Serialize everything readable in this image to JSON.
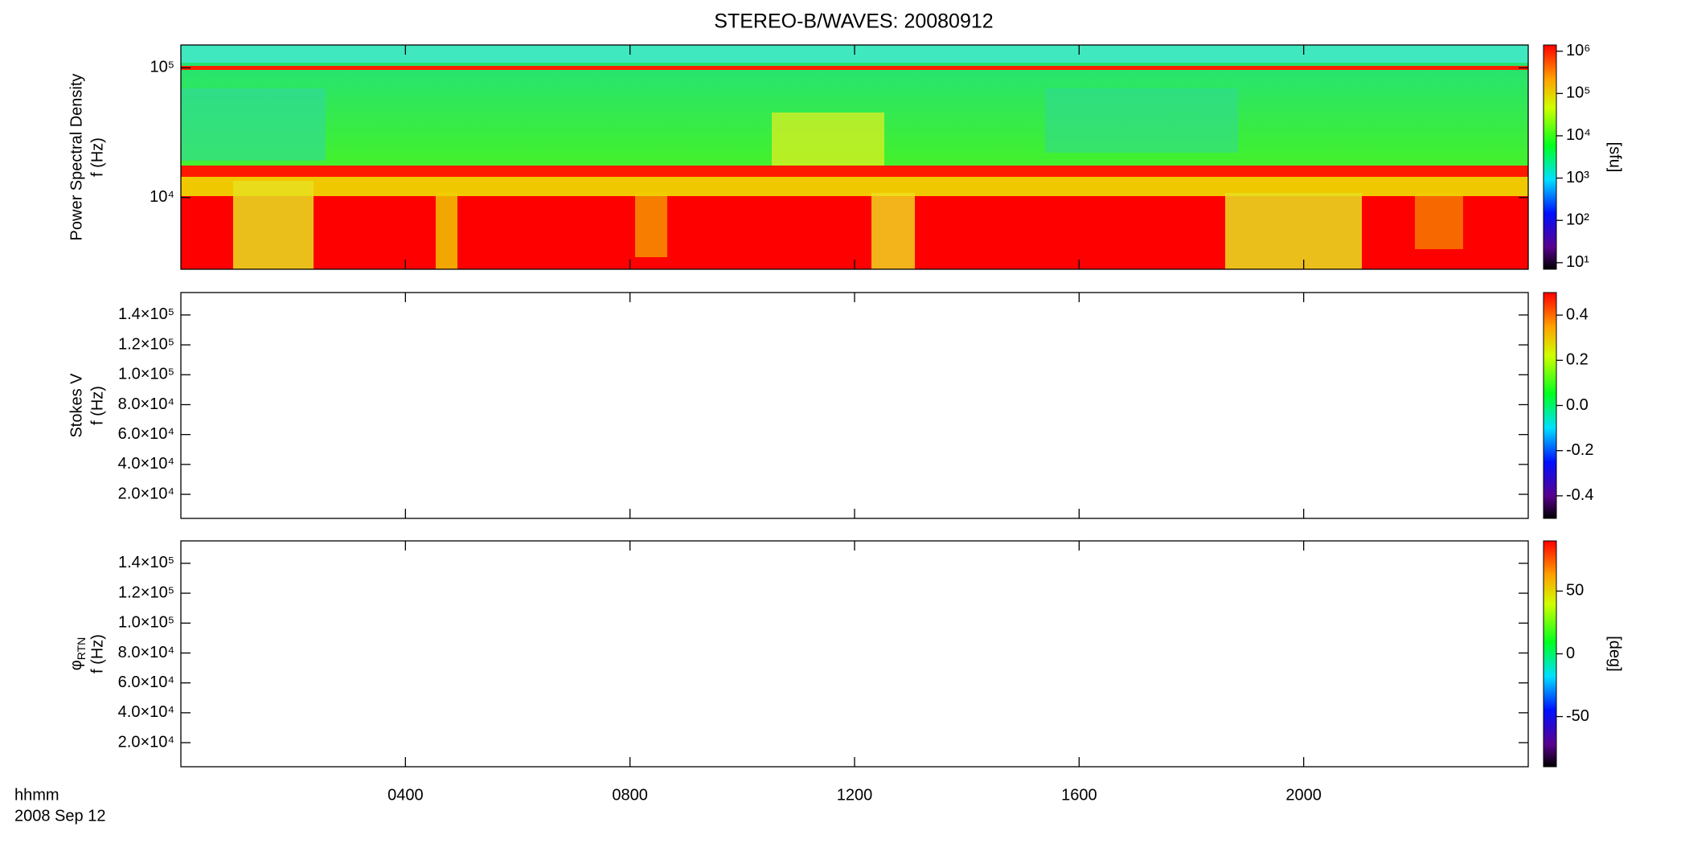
{
  "title": "STEREO-B/WAVES: 20080912",
  "xaxis": {
    "label": "hhmm",
    "date": "2008 Sep 12",
    "xlim": [
      0,
      24
    ],
    "xticks": [
      {
        "value": 4,
        "label": "0400"
      },
      {
        "value": 8,
        "label": "0800"
      },
      {
        "value": 12,
        "label": "1200"
      },
      {
        "value": 16,
        "label": "1600"
      },
      {
        "value": 20,
        "label": "2000"
      }
    ]
  },
  "chart_data": [
    {
      "type": "spectrogram",
      "ylabel_lines": [
        "Power Spectral Density",
        "f (Hz)"
      ],
      "ylog": true,
      "ylim": [
        2800,
        150000
      ],
      "yticks": [
        {
          "value": 10000,
          "label": "10⁴"
        },
        {
          "value": 100000,
          "label": "10⁵"
        }
      ],
      "colorbar": {
        "log": true,
        "clim": [
          7,
          1400000
        ],
        "label": "[sfu]",
        "cticks": [
          {
            "value": 10,
            "label": "10¹"
          },
          {
            "value": 100,
            "label": "10²"
          },
          {
            "value": 1000,
            "label": "10³"
          },
          {
            "value": 10000,
            "label": "10⁴"
          },
          {
            "value": 100000,
            "label": "10⁵"
          },
          {
            "value": 1000000,
            "label": "10⁶"
          }
        ]
      }
    },
    {
      "type": "spectrogram",
      "ylabel_lines": [
        "Stokes V",
        "f (Hz)"
      ],
      "ylog": false,
      "ylim": [
        3900,
        155000
      ],
      "yticks": [
        {
          "value": 20000,
          "label": "2.0×10⁴"
        },
        {
          "value": 40000,
          "label": "4.0×10⁴"
        },
        {
          "value": 60000,
          "label": "6.0×10⁴"
        },
        {
          "value": 80000,
          "label": "8.0×10⁴"
        },
        {
          "value": 100000,
          "label": "1.0×10⁵"
        },
        {
          "value": 120000,
          "label": "1.2×10⁵"
        },
        {
          "value": 140000,
          "label": "1.4×10⁵"
        }
      ],
      "colorbar": {
        "log": false,
        "clim": [
          -0.5,
          0.5
        ],
        "cticks": [
          -0.4,
          -0.2,
          {
            "value": 0,
            "label": "0.0"
          },
          0.2,
          0.4
        ]
      }
    },
    {
      "type": "spectrogram",
      "ylabel_symbol": "φ",
      "ylabel_subscript": "RTN",
      "ylabel_lines": [
        "f (Hz)"
      ],
      "ylog": false,
      "ylim": [
        3900,
        155000
      ],
      "yticks": [
        {
          "value": 20000,
          "label": "2.0×10⁴"
        },
        {
          "value": 40000,
          "label": "4.0×10⁴"
        },
        {
          "value": 60000,
          "label": "6.0×10⁴"
        },
        {
          "value": 80000,
          "label": "8.0×10⁴"
        },
        {
          "value": 100000,
          "label": "1.0×10⁵"
        },
        {
          "value": 120000,
          "label": "1.2×10⁵"
        },
        {
          "value": 140000,
          "label": "1.4×10⁵"
        }
      ],
      "colorbar": {
        "log": false,
        "clim": [
          -90,
          90
        ],
        "label": "[deg]",
        "cticks": [
          -50,
          0,
          50
        ]
      }
    }
  ]
}
